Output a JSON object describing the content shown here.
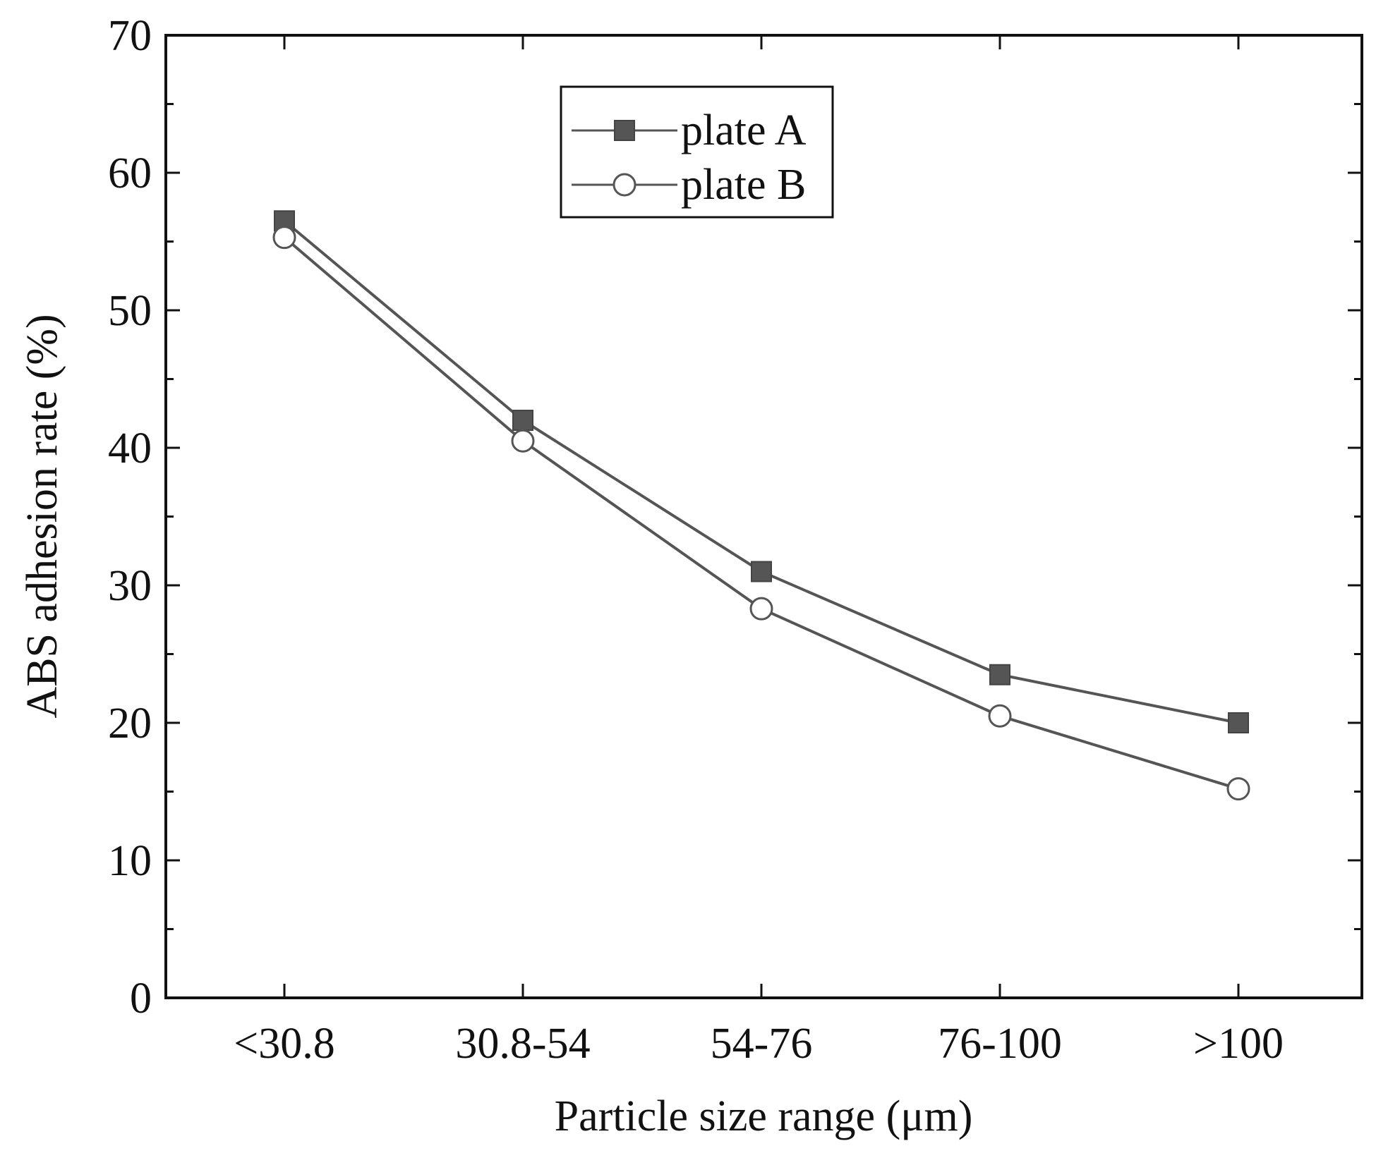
{
  "chart_data": {
    "type": "line",
    "title": "",
    "xlabel": "Particle size range (μm)",
    "ylabel": "ABS adhesion rate (%)",
    "categories": [
      "<30.8",
      "30.8-54",
      "54-76",
      "76-100",
      ">100"
    ],
    "ylim": [
      0,
      70
    ],
    "yticks": [
      0,
      10,
      20,
      30,
      40,
      50,
      60,
      70
    ],
    "grid": false,
    "legend_position": "top-center",
    "series": [
      {
        "name": "plate A",
        "marker": "filled-square",
        "color": "#555555",
        "values": [
          56.5,
          42.0,
          31.0,
          23.5,
          20.0
        ]
      },
      {
        "name": "plate B",
        "marker": "open-circle",
        "color": "#555555",
        "values": [
          55.3,
          40.5,
          28.3,
          20.5,
          15.2
        ]
      }
    ]
  }
}
